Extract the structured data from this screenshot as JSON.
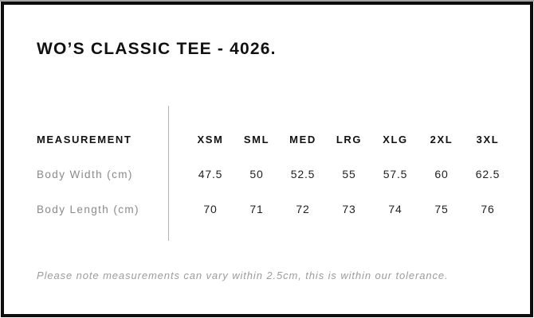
{
  "header": {
    "title": "WO’S CLASSIC TEE - 4026."
  },
  "size_chart": {
    "measurement_header": "MEASUREMENT",
    "sizes": [
      "XSM",
      "SML",
      "MED",
      "LRG",
      "XLG",
      "2XL",
      "3XL"
    ],
    "rows": [
      {
        "label": "Body Width (cm)",
        "values": [
          "47.5",
          "50",
          "52.5",
          "55",
          "57.5",
          "60",
          "62.5"
        ]
      },
      {
        "label": "Body Length (cm)",
        "values": [
          "70",
          "71",
          "72",
          "73",
          "74",
          "75",
          "76"
        ]
      }
    ]
  },
  "footer": {
    "note": "Please note measurements can vary within 2.5cm, this is within our tolerance."
  },
  "colors": {
    "background": "#ffffff",
    "frame_border": "#0d0d0d",
    "top_hairline": "#a6a6a6",
    "heading_text": "#111111",
    "value_text": "#1f1f1f",
    "row_label_text": "#8a8a8a",
    "note_text": "#9c9c9c",
    "divider": "#b3b3b3"
  }
}
